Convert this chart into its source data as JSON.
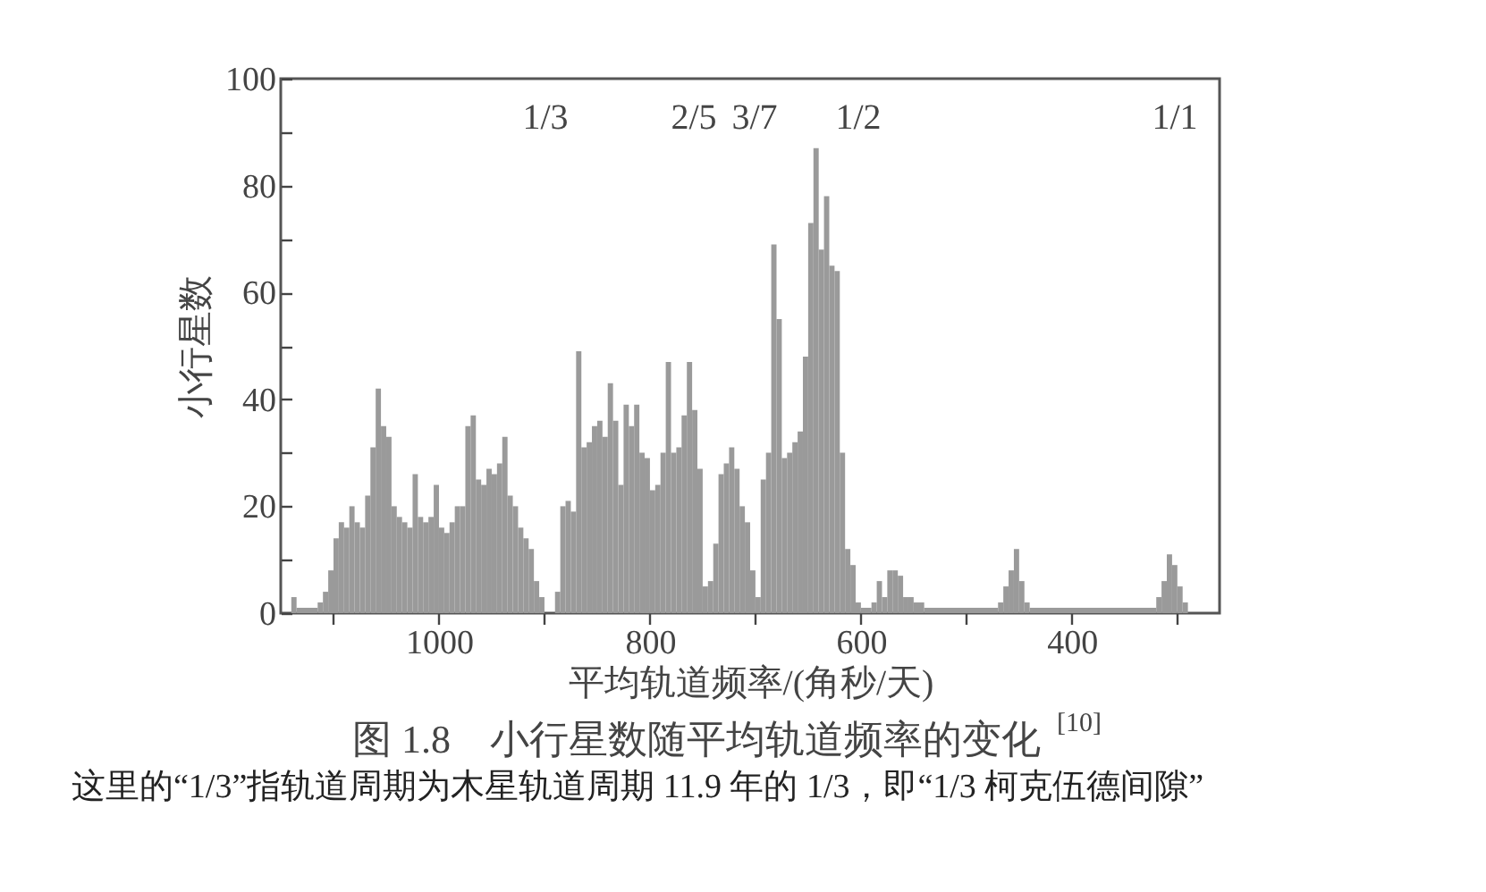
{
  "chart_data": {
    "type": "histogram",
    "title": "图 1.8　小行星数随平均轨道频率的变化 $^{[10]}$",
    "xlabel": "平均轨道频率/(角秒/天)",
    "ylabel": "小行星数",
    "color": "#9a9a9a",
    "bins": [
      1140,
      1135,
      1115,
      1110,
      1105,
      1100,
      1095,
      1090,
      1085,
      1080,
      1075,
      1070,
      1065,
      1060,
      1055,
      1050,
      1045,
      1040,
      1035,
      1030,
      1025,
      1020,
      1015,
      1010,
      1005,
      1000,
      995,
      990,
      985,
      980,
      975,
      970,
      965,
      960,
      955,
      950,
      945,
      940,
      935,
      930,
      925,
      920,
      915,
      910,
      905,
      900,
      890,
      885,
      880,
      875,
      870,
      865,
      860,
      855,
      850,
      845,
      840,
      835,
      830,
      825,
      820,
      815,
      810,
      805,
      800,
      795,
      790,
      785,
      780,
      775,
      770,
      765,
      760,
      755,
      750,
      745,
      740,
      735,
      730,
      725,
      720,
      715,
      710,
      705,
      700,
      695,
      690,
      685,
      680,
      675,
      670,
      665,
      660,
      655,
      650,
      645,
      640,
      635,
      630,
      625,
      620,
      615,
      610,
      605,
      600,
      590,
      585,
      580,
      575,
      570,
      565,
      560,
      555,
      550,
      540,
      470,
      465,
      460,
      455,
      450,
      445,
      440,
      320,
      315,
      310,
      305,
      300,
      295,
      290
    ],
    "values": [
      3,
      1,
      2,
      4,
      8,
      14,
      17,
      16,
      20,
      17,
      16,
      22,
      31,
      42,
      35,
      33,
      20,
      18,
      17,
      16,
      26,
      18,
      17,
      18,
      24,
      16,
      15,
      17,
      20,
      20,
      35,
      37,
      25,
      24,
      27,
      26,
      28,
      33,
      22,
      20,
      16,
      14,
      12,
      6,
      3,
      null,
      4,
      20,
      21,
      19,
      49,
      31,
      32,
      35,
      36,
      33,
      43,
      36,
      24,
      39,
      35,
      39,
      30,
      29,
      23,
      24,
      30,
      47,
      30,
      31,
      37,
      47,
      38,
      27,
      5,
      6,
      13,
      26,
      28,
      31,
      27,
      20,
      17,
      8,
      3,
      25,
      30,
      69,
      55,
      29,
      30,
      32,
      34,
      48,
      73,
      87,
      68,
      78,
      65,
      64,
      30,
      12,
      9,
      2,
      1,
      2,
      6,
      3,
      8,
      8,
      7,
      3,
      3,
      2,
      1,
      2,
      5,
      8,
      12,
      6,
      2,
      1,
      3,
      6,
      11,
      9,
      5,
      2
    ],
    "xlim": [
      1150,
      260
    ],
    "xticks": [
      {
        "value": 1100,
        "label": null
      },
      1000,
      {
        "value": 900,
        "label": null
      },
      800,
      {
        "value": 700,
        "label": null
      },
      600,
      {
        "value": 500,
        "label": null
      },
      400,
      {
        "value": 300,
        "label": null
      }
    ],
    "ylim": [
      0,
      100
    ],
    "yticks": [
      0,
      {
        "value": 10,
        "label": null
      },
      20,
      {
        "value": 30,
        "label": null
      },
      40,
      {
        "value": 50,
        "label": null
      },
      60,
      {
        "value": 70,
        "label": null
      },
      80,
      {
        "value": 90,
        "label": null
      },
      100
    ],
    "annotations": [
      "1/3",
      "2/5",
      "3/7",
      "1/2",
      "1/1",
      "这里的“1/3”指轨道周期为木星轨道周期 11.9 年的 1/3，即“1/3 柯克伍德间隙”"
    ]
  }
}
